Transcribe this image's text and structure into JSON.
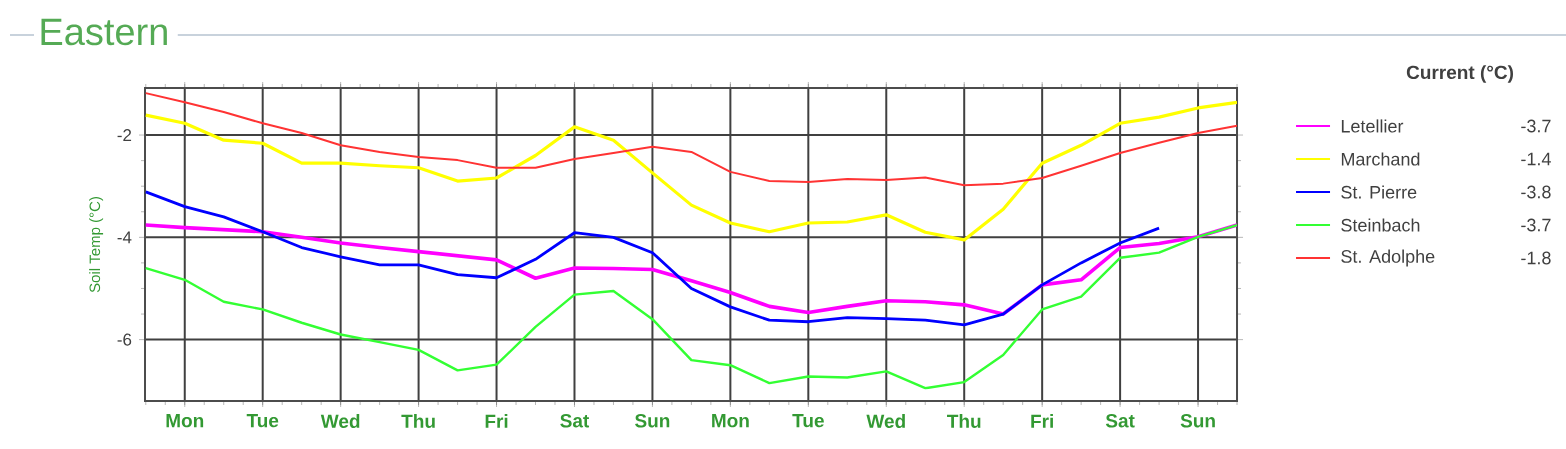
{
  "chart_data": {
    "type": "line",
    "title": "Eastern",
    "ylabel": "Soil Temp (°C)",
    "legend_title": "Current (°C)",
    "legend": "right",
    "grid": true,
    "marker": "none",
    "line_style": "solid",
    "categories": [
      null,
      "Mon",
      null,
      "Tue",
      null,
      "Wed",
      null,
      "Thu",
      null,
      "Fri",
      null,
      "Sat",
      null,
      "Sun",
      null,
      "Mon",
      null,
      "Tue",
      null,
      "Wed",
      null,
      "Thu",
      null,
      "Fri",
      null,
      "Sat",
      null,
      "Sun",
      null
    ],
    "ylim": [
      -7.2,
      -1.08
    ],
    "yticks": [
      -2,
      -4,
      -6
    ],
    "annotations": [
      "-3.7",
      "-1.4",
      "-3.8",
      "-3.7",
      "-1.8"
    ],
    "series": [
      {
        "name": "Letellier",
        "color": "#ff00ff",
        "values": [
          -3.76,
          -3.81,
          -3.85,
          -3.89,
          -4.0,
          -4.11,
          -4.2,
          -4.28,
          -4.36,
          -4.44,
          -4.8,
          -4.6,
          -4.61,
          -4.63,
          -4.85,
          -5.08,
          -5.35,
          -5.47,
          -5.35,
          -5.24,
          -5.26,
          -5.32,
          -5.5,
          -4.93,
          -4.83,
          -4.2,
          -4.12,
          -3.99,
          -3.76
        ]
      },
      {
        "name": "Marchand",
        "color": "#ffff00",
        "values": [
          -1.61,
          -1.77,
          -2.1,
          -2.16,
          -2.55,
          -2.55,
          -2.6,
          -2.64,
          -2.9,
          -2.84,
          -2.4,
          -1.84,
          -2.1,
          -2.74,
          -3.37,
          -3.72,
          -3.89,
          -3.72,
          -3.7,
          -3.56,
          -3.9,
          -4.05,
          -3.45,
          -2.55,
          -2.2,
          -1.77,
          -1.65,
          -1.47,
          -1.36
        ]
      },
      {
        "name": "St. Pierre",
        "color": "#0000ff",
        "values": [
          -3.11,
          -3.4,
          -3.6,
          -3.89,
          -4.2,
          -4.38,
          -4.54,
          -4.54,
          -4.73,
          -4.79,
          -4.43,
          -3.91,
          -4.0,
          -4.3,
          -5.0,
          -5.36,
          -5.62,
          -5.65,
          -5.57,
          -5.59,
          -5.62,
          -5.71,
          -5.5,
          -4.93,
          -4.5,
          -4.11,
          -3.82,
          null,
          null
        ]
      },
      {
        "name": "Steinbach",
        "color": "#33ff33",
        "values": [
          -4.6,
          -4.83,
          -5.26,
          -5.41,
          -5.67,
          -5.9,
          -6.05,
          -6.2,
          -6.6,
          -6.49,
          -5.75,
          -5.12,
          -5.05,
          -5.6,
          -6.4,
          -6.5,
          -6.85,
          -6.72,
          -6.74,
          -6.62,
          -6.95,
          -6.83,
          -6.3,
          -5.41,
          -5.16,
          -4.4,
          -4.3,
          -3.99,
          -3.76
        ]
      },
      {
        "name": "St. Adolphe",
        "color": "#ff3333",
        "values": [
          -1.18,
          -1.36,
          -1.55,
          -1.77,
          -1.96,
          -2.2,
          -2.33,
          -2.43,
          -2.49,
          -2.64,
          -2.64,
          -2.47,
          -2.35,
          -2.23,
          -2.33,
          -2.72,
          -2.9,
          -2.92,
          -2.86,
          -2.88,
          -2.83,
          -2.98,
          -2.95,
          -2.84,
          -2.6,
          -2.35,
          -2.15,
          -1.96,
          -1.82
        ]
      }
    ]
  }
}
